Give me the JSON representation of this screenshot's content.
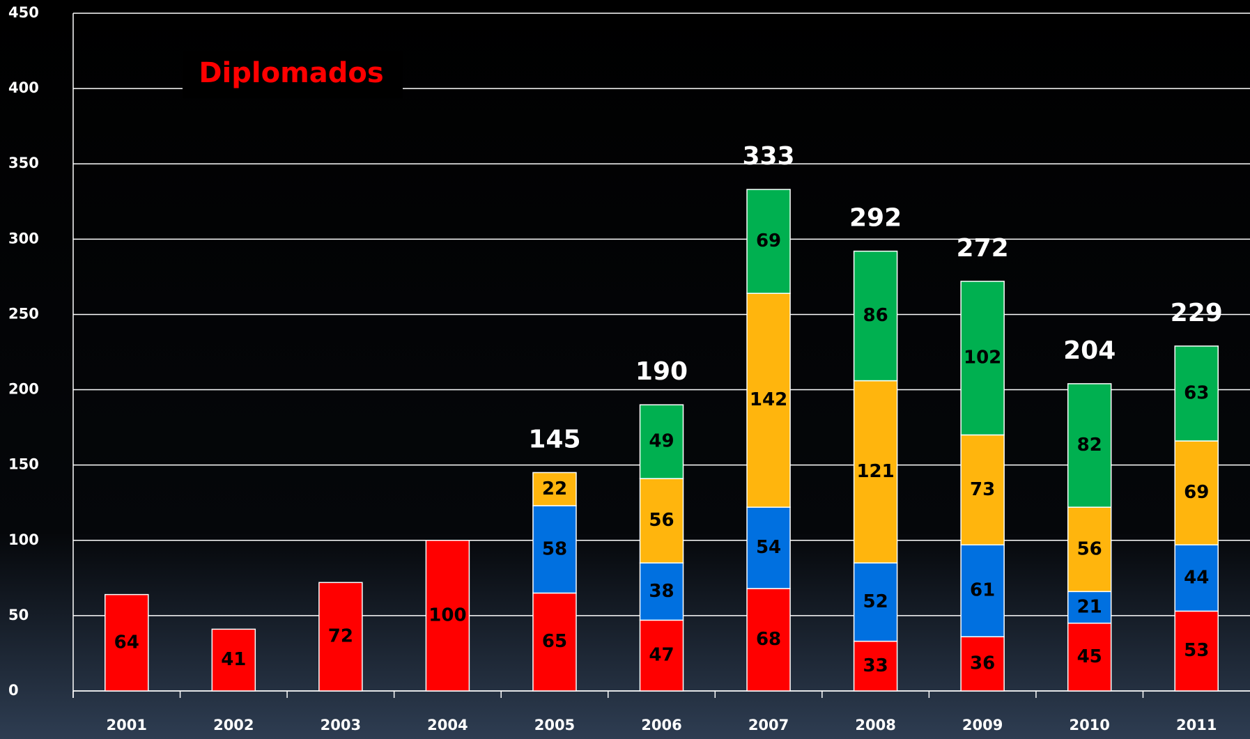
{
  "chart_data": {
    "type": "bar",
    "stacked": true,
    "title": "Diplomados",
    "categories": [
      "2001",
      "2002",
      "2003",
      "2004",
      "2005",
      "2006",
      "2007",
      "2008",
      "2009",
      "2010",
      "2011"
    ],
    "series": [
      {
        "color": "#ff0000",
        "values": [
          64,
          41,
          72,
          100,
          65,
          47,
          68,
          33,
          36,
          45,
          53
        ]
      },
      {
        "color": "#0070e0",
        "values": [
          null,
          null,
          null,
          null,
          58,
          38,
          54,
          52,
          61,
          21,
          44
        ]
      },
      {
        "color": "#ffb50d",
        "values": [
          null,
          null,
          null,
          null,
          22,
          56,
          142,
          121,
          73,
          56,
          69
        ]
      },
      {
        "color": "#00b050",
        "values": [
          null,
          null,
          null,
          null,
          null,
          49,
          69,
          86,
          102,
          82,
          63
        ]
      }
    ],
    "totals": [
      null,
      null,
      null,
      null,
      145,
      190,
      333,
      292,
      272,
      204,
      229
    ],
    "ylim": [
      0,
      450
    ],
    "yticks": [
      0,
      50,
      100,
      150,
      200,
      250,
      300,
      350,
      400,
      450
    ],
    "grid": true
  }
}
